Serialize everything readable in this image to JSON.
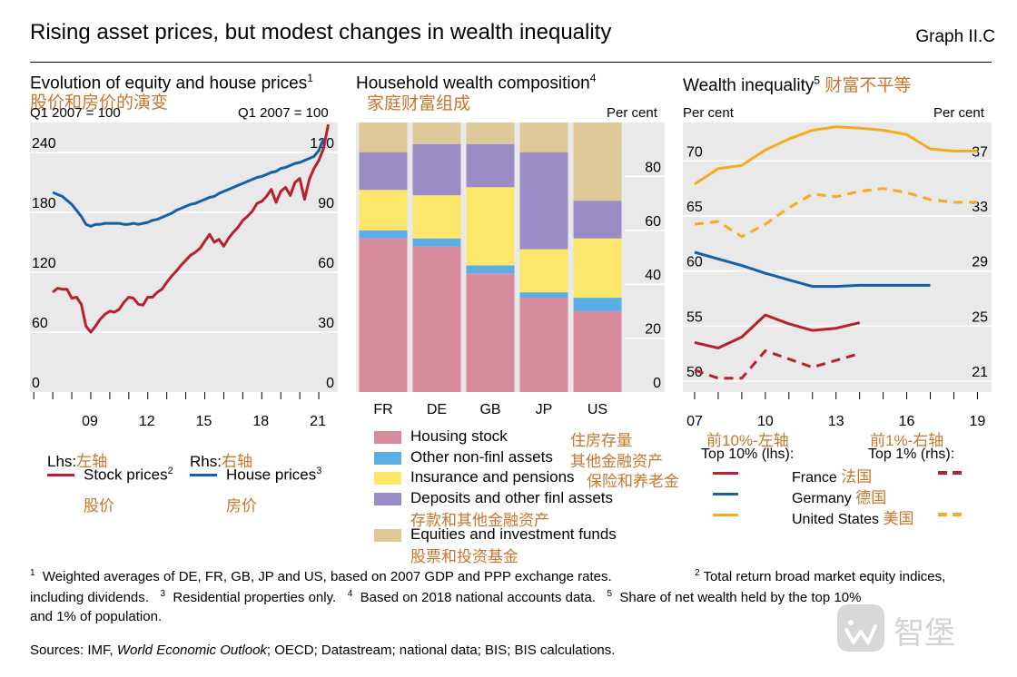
{
  "header": {
    "title": "Rising asset prices, but modest changes in wealth inequality",
    "graph_id": "Graph II.C"
  },
  "panel1": {
    "title": "Evolution of equity and house prices",
    "title_sup": "1",
    "title_cn": "股价和房价的演变",
    "lhs_unit": "Q1 2007 = 100",
    "rhs_unit": "Q1 2007 = 100",
    "lhs_legend": "Lhs:",
    "lhs_legend_cn": "左轴",
    "rhs_legend": "Rhs:",
    "rhs_legend_cn": "右轴",
    "stock_label": "Stock prices",
    "stock_sup": "2",
    "stock_cn": "股价",
    "house_label": "House prices",
    "house_sup": "3",
    "house_cn": "房价"
  },
  "panel2": {
    "title": "Household wealth composition",
    "title_sup": "4",
    "title_cn": "家庭财富组成",
    "rhs_unit": "Per cent",
    "legend": [
      {
        "label": "Housing stock",
        "cn": "住房存量",
        "color": "#d78b9c"
      },
      {
        "label": "Other non-finl assets",
        "cn": "其他金融资产",
        "color": "#5aaee3"
      },
      {
        "label": "Insurance and pensions",
        "cn": "保险和养老金",
        "color": "#fce76c"
      },
      {
        "label": "Deposits and other finl assets",
        "cn": "存款和其他金融资产",
        "color": "#9a8dc6"
      },
      {
        "label": "Equities and investment funds",
        "cn": "股票和投资基金",
        "color": "#ddc898"
      }
    ]
  },
  "panel3": {
    "title": "Wealth inequality",
    "title_sup": "5",
    "title_cn": "财富不平等",
    "lhs_unit": "Per cent",
    "rhs_unit": "Per cent",
    "lhs_note_cn": "前10%-左轴",
    "rhs_note_cn": "前1%-右轴",
    "top10": "Top 10% (lhs):",
    "top1": "Top 1% (rhs):",
    "countries": [
      {
        "label": "France",
        "cn": "法国",
        "color": "#b8202e"
      },
      {
        "label": "Germany",
        "cn": "德国",
        "color": "#1561a9"
      },
      {
        "label": "United States",
        "cn": "美国",
        "color": "#f2ac1d"
      }
    ]
  },
  "footnotes": {
    "line1a": "Weighted averages of DE, FR, GB, JP and US, based on 2007 GDP and PPP exchange rates.",
    "line1b": "Total return broad market equity indices,",
    "line2a": "including dividends.",
    "line2b": "Residential properties only.",
    "line2c": "Based on 2018 national accounts data.",
    "line2d": "Share of net wealth held by the top 10%",
    "line3": "and 1% of population.",
    "n1": "1",
    "n2": "2",
    "n3": "3",
    "n4": "4",
    "n5": "5",
    "sources_pre": "Sources: IMF, ",
    "sources_italic": "World Economic Outlook",
    "sources_post": "; OECD; Datastream; national data; BIS; BIS calculations."
  },
  "watermark": {
    "text": "智堡"
  },
  "chart_data": [
    {
      "type": "line",
      "title": "Evolution of equity and house prices",
      "lhs": {
        "ticks": [
          0,
          60,
          120,
          180,
          240
        ],
        "ylim": [
          0,
          270
        ]
      },
      "rhs": {
        "ticks": [
          0,
          30,
          60,
          90,
          120
        ],
        "ylim": [
          0,
          135
        ]
      },
      "xlim": [
        2005.8,
        2022.0
      ],
      "x_ticks": [
        2006,
        2007,
        2008,
        2009,
        2010,
        2011,
        2012,
        2013,
        2014,
        2015,
        2016,
        2017,
        2018,
        2019,
        2020,
        2021
      ],
      "x_labels": [
        {
          "x": 2009,
          "text": "09"
        },
        {
          "x": 2012,
          "text": "12"
        },
        {
          "x": 2015,
          "text": "15"
        },
        {
          "x": 2018,
          "text": "18"
        },
        {
          "x": 2021,
          "text": "21"
        }
      ],
      "series": [
        {
          "name": "Stock prices",
          "axis": "lhs",
          "color": "#b8202e",
          "points": [
            [
              2007.0,
              100
            ],
            [
              2007.25,
              104
            ],
            [
              2007.5,
              103
            ],
            [
              2007.75,
              103
            ],
            [
              2008.0,
              94
            ],
            [
              2008.25,
              95
            ],
            [
              2008.5,
              88
            ],
            [
              2008.75,
              66
            ],
            [
              2009.0,
              60
            ],
            [
              2009.25,
              66
            ],
            [
              2009.5,
              73
            ],
            [
              2009.75,
              78
            ],
            [
              2010.0,
              81
            ],
            [
              2010.25,
              80
            ],
            [
              2010.5,
              83
            ],
            [
              2010.75,
              90
            ],
            [
              2011.0,
              95
            ],
            [
              2011.25,
              94
            ],
            [
              2011.5,
              88
            ],
            [
              2011.75,
              87
            ],
            [
              2012.0,
              95
            ],
            [
              2012.25,
              95
            ],
            [
              2012.5,
              100
            ],
            [
              2012.75,
              103
            ],
            [
              2013.0,
              110
            ],
            [
              2013.25,
              116
            ],
            [
              2013.5,
              121
            ],
            [
              2013.75,
              127
            ],
            [
              2014.0,
              132
            ],
            [
              2014.25,
              137
            ],
            [
              2014.5,
              140
            ],
            [
              2014.75,
              144
            ],
            [
              2015.0,
              151
            ],
            [
              2015.25,
              158
            ],
            [
              2015.5,
              150
            ],
            [
              2015.75,
              153
            ],
            [
              2016.0,
              146
            ],
            [
              2016.25,
              154
            ],
            [
              2016.5,
              160
            ],
            [
              2016.75,
              165
            ],
            [
              2017.0,
              172
            ],
            [
              2017.25,
              176
            ],
            [
              2017.5,
              181
            ],
            [
              2017.75,
              189
            ],
            [
              2018.0,
              191
            ],
            [
              2018.25,
              196
            ],
            [
              2018.5,
              203
            ],
            [
              2018.75,
              190
            ],
            [
              2019.0,
              201
            ],
            [
              2019.25,
              205
            ],
            [
              2019.5,
              197
            ],
            [
              2019.75,
              210
            ],
            [
              2020.0,
              214
            ],
            [
              2020.25,
              193
            ],
            [
              2020.5,
              213
            ],
            [
              2020.75,
              224
            ],
            [
              2021.0,
              232
            ],
            [
              2021.25,
              244
            ],
            [
              2021.5,
              268
            ]
          ]
        },
        {
          "name": "House prices",
          "axis": "rhs",
          "color": "#1561a9",
          "points": [
            [
              2007.0,
              100
            ],
            [
              2007.25,
              99
            ],
            [
              2007.5,
              98
            ],
            [
              2007.75,
              96
            ],
            [
              2008.0,
              94
            ],
            [
              2008.25,
              91
            ],
            [
              2008.5,
              88
            ],
            [
              2008.75,
              84
            ],
            [
              2009.0,
              83
            ],
            [
              2009.25,
              84
            ],
            [
              2009.5,
              84
            ],
            [
              2009.75,
              84.5
            ],
            [
              2010.0,
              84.5
            ],
            [
              2010.25,
              84.5
            ],
            [
              2010.5,
              84.5
            ],
            [
              2010.75,
              84
            ],
            [
              2011.0,
              84
            ],
            [
              2011.25,
              84.5
            ],
            [
              2011.5,
              84
            ],
            [
              2011.75,
              84.5
            ],
            [
              2012.0,
              85
            ],
            [
              2012.25,
              86
            ],
            [
              2012.5,
              86.5
            ],
            [
              2012.75,
              87.5
            ],
            [
              2013.0,
              88.5
            ],
            [
              2013.25,
              89.5
            ],
            [
              2013.5,
              91
            ],
            [
              2013.75,
              92
            ],
            [
              2014.0,
              93
            ],
            [
              2014.25,
              94
            ],
            [
              2014.5,
              94.5
            ],
            [
              2014.75,
              95.5
            ],
            [
              2015.0,
              96.5
            ],
            [
              2015.25,
              97.5
            ],
            [
              2015.5,
              98
            ],
            [
              2015.75,
              99.5
            ],
            [
              2016.0,
              100.5
            ],
            [
              2016.25,
              101.5
            ],
            [
              2016.5,
              102.5
            ],
            [
              2016.75,
              103.5
            ],
            [
              2017.0,
              104.5
            ],
            [
              2017.25,
              105.5
            ],
            [
              2017.5,
              106.5
            ],
            [
              2017.75,
              107.5
            ],
            [
              2018.0,
              108
            ],
            [
              2018.25,
              109
            ],
            [
              2018.5,
              110
            ],
            [
              2018.75,
              110.5
            ],
            [
              2019.0,
              112
            ],
            [
              2019.25,
              112.5
            ],
            [
              2019.5,
              113.5
            ],
            [
              2019.75,
              114.5
            ],
            [
              2020.0,
              115
            ],
            [
              2020.25,
              116
            ],
            [
              2020.5,
              117
            ],
            [
              2020.75,
              118
            ],
            [
              2021.0,
              121
            ],
            [
              2021.25,
              127
            ]
          ]
        }
      ]
    },
    {
      "type": "bar",
      "stacked": true,
      "title": "Household wealth composition",
      "categories": [
        "FR",
        "DE",
        "GB",
        "JP",
        "US"
      ],
      "ylim": [
        0,
        100
      ],
      "ticks": [
        0,
        20,
        40,
        60,
        80
      ],
      "series": [
        {
          "name": "Housing stock",
          "color": "#d78b9c",
          "values": [
            57,
            54,
            44,
            35,
            30
          ]
        },
        {
          "name": "Other non-finl assets",
          "color": "#5aaee3",
          "values": [
            3,
            3,
            3,
            2,
            5
          ]
        },
        {
          "name": "Insurance and pensions",
          "color": "#fce76c",
          "values": [
            15,
            16,
            29,
            16,
            22
          ]
        },
        {
          "name": "Deposits and other finl assets",
          "color": "#9a8dc6",
          "values": [
            14,
            19,
            16,
            36,
            14
          ]
        },
        {
          "name": "Equities and investment funds",
          "color": "#ddc898",
          "values": [
            11,
            8,
            8,
            11,
            29
          ]
        }
      ]
    },
    {
      "type": "line",
      "title": "Wealth inequality",
      "lhs": {
        "ticks": [
          50,
          55,
          60,
          65,
          70
        ],
        "ylim": [
          49,
          73.5
        ]
      },
      "rhs": {
        "ticks": [
          21,
          25,
          29,
          33,
          37
        ],
        "ylim": [
          20.2,
          39.8
        ]
      },
      "xlim": [
        2006.5,
        2019.6
      ],
      "x_ticks": [
        2007,
        2008,
        2009,
        2010,
        2011,
        2012,
        2013,
        2014,
        2015,
        2016,
        2017,
        2018,
        2019
      ],
      "x_labels": [
        {
          "x": 2007,
          "text": "07"
        },
        {
          "x": 2010,
          "text": "10"
        },
        {
          "x": 2013,
          "text": "13"
        },
        {
          "x": 2016,
          "text": "16"
        },
        {
          "x": 2019,
          "text": "19"
        }
      ],
      "series": [
        {
          "name": "France",
          "group": "Top 10% (lhs)",
          "axis": "lhs",
          "color": "#b8202e",
          "dashed": false,
          "points": [
            [
              2007,
              53.5
            ],
            [
              2008,
              53.0
            ],
            [
              2009,
              54.0
            ],
            [
              2010,
              56.0
            ],
            [
              2011,
              55.2
            ],
            [
              2012,
              54.6
            ],
            [
              2013,
              54.8
            ],
            [
              2014,
              55.3
            ]
          ]
        },
        {
          "name": "Germany",
          "group": "Top 10% (lhs)",
          "axis": "lhs",
          "color": "#1561a9",
          "dashed": false,
          "points": [
            [
              2007,
              61.7
            ],
            [
              2008,
              61.1
            ],
            [
              2009,
              60.5
            ],
            [
              2010,
              59.8
            ],
            [
              2011,
              59.2
            ],
            [
              2012,
              58.6
            ],
            [
              2013,
              58.6
            ],
            [
              2014,
              58.7
            ],
            [
              2015,
              58.7
            ],
            [
              2016,
              58.7
            ],
            [
              2017,
              58.7
            ]
          ]
        },
        {
          "name": "United States",
          "group": "Top 10% (lhs)",
          "axis": "lhs",
          "color": "#f2ac1d",
          "dashed": false,
          "points": [
            [
              2007,
              67.9
            ],
            [
              2008,
              69.3
            ],
            [
              2009,
              69.6
            ],
            [
              2010,
              71.0
            ],
            [
              2011,
              72.0
            ],
            [
              2012,
              72.8
            ],
            [
              2013,
              73.1
            ],
            [
              2014,
              73.0
            ],
            [
              2015,
              72.8
            ],
            [
              2016,
              72.4
            ],
            [
              2017,
              71.1
            ],
            [
              2018,
              70.9
            ],
            [
              2019,
              70.9
            ]
          ]
        },
        {
          "name": "France",
          "group": "Top 1% (rhs)",
          "axis": "rhs",
          "color": "#b8202e",
          "dashed": true,
          "points": [
            [
              2007,
              21.8
            ],
            [
              2008,
              21.2
            ],
            [
              2009,
              21.2
            ],
            [
              2010,
              23.2
            ],
            [
              2011,
              22.6
            ],
            [
              2012,
              22.0
            ],
            [
              2013,
              22.5
            ],
            [
              2014,
              23.0
            ]
          ]
        },
        {
          "name": "United States",
          "group": "Top 1% (rhs)",
          "axis": "rhs",
          "color": "#f2ac1d",
          "dashed": true,
          "points": [
            [
              2007,
              32.4
            ],
            [
              2008,
              32.6
            ],
            [
              2009,
              31.5
            ],
            [
              2010,
              32.4
            ],
            [
              2011,
              33.6
            ],
            [
              2012,
              34.6
            ],
            [
              2013,
              34.4
            ],
            [
              2014,
              34.8
            ],
            [
              2015,
              35.0
            ],
            [
              2016,
              34.7
            ],
            [
              2017,
              34.2
            ],
            [
              2018,
              34.0
            ],
            [
              2019,
              34.0
            ]
          ]
        }
      ]
    }
  ]
}
